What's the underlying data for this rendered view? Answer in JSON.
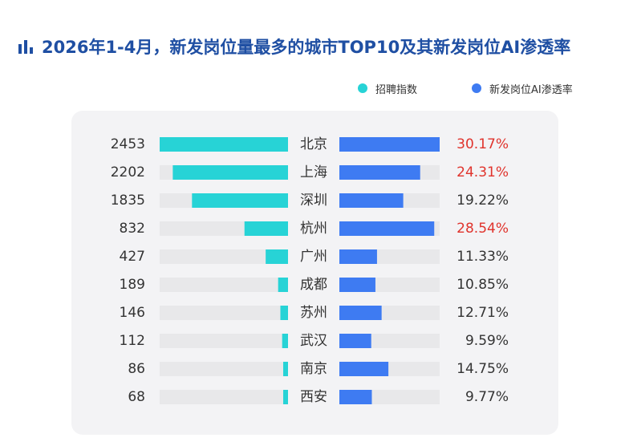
{
  "title": "2026年1-4月，新发岗位量最多的城市TOP10及其新发岗位AI渗透率",
  "legend": [
    {
      "label": "招聘指数",
      "color": "#27d3d6"
    },
    {
      "label": "新发岗位AI渗透率",
      "color": "#3e7bf2"
    }
  ],
  "colors": {
    "left_bar": "#27d3d6",
    "right_bar": "#3e7bf2",
    "track": "#e8e8ea",
    "highlight": "#e0332c",
    "text": "#333333"
  },
  "chart_data": {
    "type": "bar",
    "categories": [
      "北京",
      "上海",
      "深圳",
      "杭州",
      "广州",
      "成都",
      "苏州",
      "武汉",
      "南京",
      "西安"
    ],
    "series": [
      {
        "name": "招聘指数",
        "values": [
          2453,
          2202,
          1835,
          832,
          427,
          189,
          146,
          112,
          86,
          68
        ]
      },
      {
        "name": "新发岗位AI渗透率",
        "values": [
          30.17,
          24.31,
          19.22,
          28.54,
          11.33,
          10.85,
          12.71,
          9.59,
          14.75,
          9.77
        ]
      }
    ],
    "value_labels_left": [
      "2453",
      "2202",
      "1835",
      "832",
      "427",
      "189",
      "146",
      "112",
      "86",
      "68"
    ],
    "value_labels_right": [
      "30.17%",
      "24.31%",
      "19.22%",
      "28.54%",
      "11.33%",
      "10.85%",
      "12.71%",
      "9.59%",
      "14.75%",
      "9.77%"
    ],
    "highlighted_categories": [
      "北京",
      "上海",
      "杭州"
    ],
    "left_axis_max": 2453,
    "right_axis_max": 30.17
  }
}
